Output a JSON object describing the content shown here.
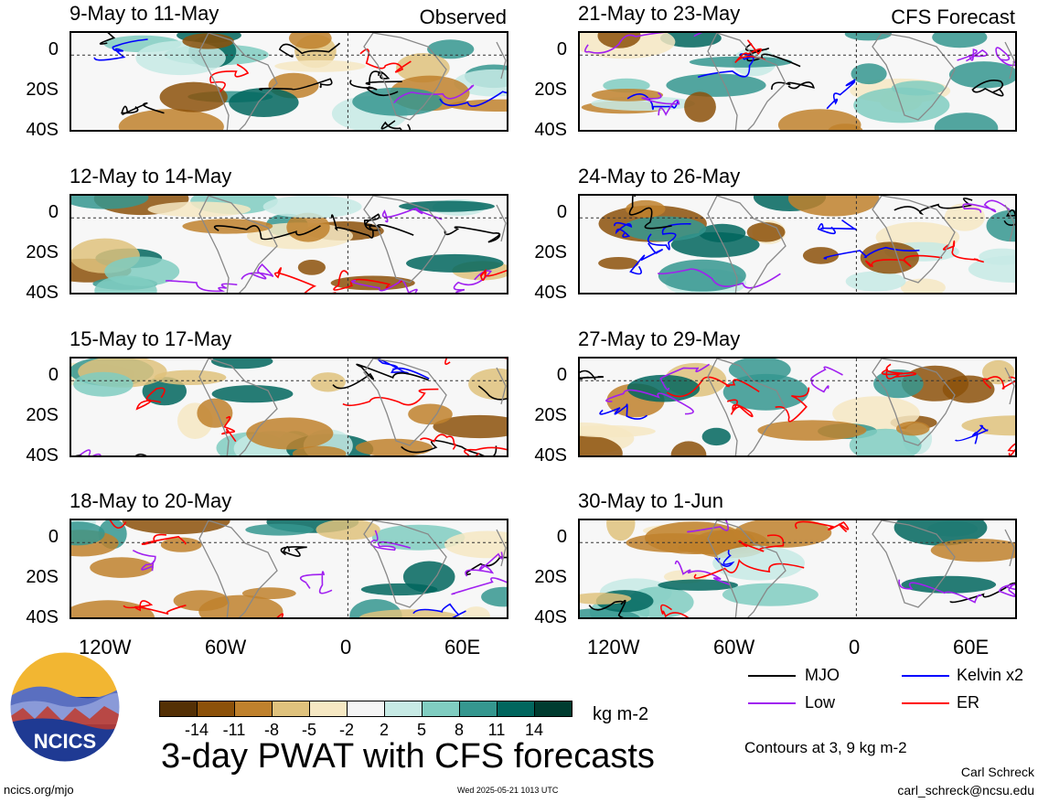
{
  "titles": {
    "observed": "Observed",
    "forecast": "CFS Forecast",
    "main": "3-day PWAT with CFS forecasts",
    "units": "kg m-2",
    "contours_note": "Contours at 3, 9 kg m-2"
  },
  "panels_left": [
    "9-May to 11-May",
    "12-May to 14-May",
    "15-May to 17-May",
    "18-May to 20-May"
  ],
  "panels_right": [
    "21-May to 23-May",
    "24-May to 26-May",
    "27-May to 29-May",
    "30-May to 1-Jun"
  ],
  "lat_labels": [
    "0",
    "20S",
    "40S"
  ],
  "lon_labels": [
    "120W",
    "60W",
    "0",
    "60E"
  ],
  "legend": {
    "mjo": {
      "label": "MJO",
      "color": "#000000"
    },
    "kelvin": {
      "label": "Kelvin x2",
      "color": "#0000ff"
    },
    "low": {
      "label": "Low",
      "color": "#a020f0"
    },
    "er": {
      "label": "ER",
      "color": "#ff0000"
    }
  },
  "colorbar": {
    "ticks": [
      "-14",
      "-11",
      "-8",
      "-5",
      "-2",
      "2",
      "5",
      "8",
      "11",
      "14"
    ],
    "colors": [
      "#543005",
      "#8c510a",
      "#bf812d",
      "#dfc27d",
      "#f6e8c3",
      "#f5f5f5",
      "#c7eae5",
      "#80cdc1",
      "#35978f",
      "#01665e",
      "#003c30"
    ]
  },
  "footer": {
    "left": "ncics.org/mjo",
    "center": "Wed 2025-05-21 1013 UTC",
    "author": "Carl Schreck",
    "email": "carl_schreck@ncsu.edu"
  },
  "logo": {
    "text": "NCICS"
  }
}
